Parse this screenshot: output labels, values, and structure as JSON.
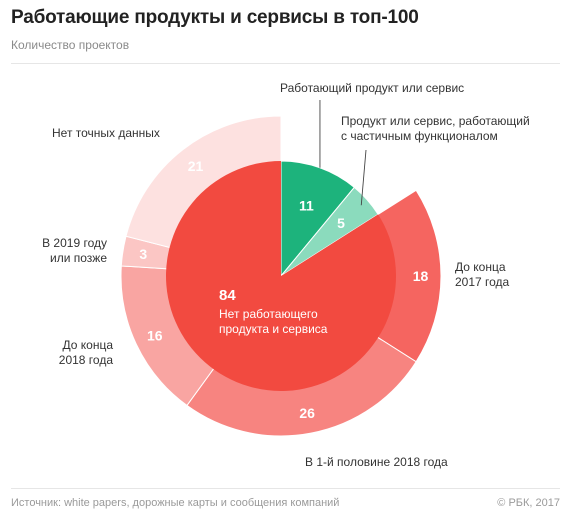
{
  "header": {
    "title": "Работающие продукты и сервисы в топ-100",
    "subtitle": "Количество проектов"
  },
  "chart_data": {
    "type": "pie",
    "title": "Работающие продукты и сервисы в топ-100",
    "subtitle": "Количество проектов",
    "inner_ring": [
      {
        "label": "Работающий продукт или сервис",
        "value": 11,
        "color": "#1db37c"
      },
      {
        "label": "Продукт или сервис, работающий с частичным функционалом",
        "value": 5,
        "color": "#8bdbbd"
      },
      {
        "label": "Нет работающего продукта и сервиса",
        "value": 84,
        "color": "#f24a40"
      }
    ],
    "outer_ring": {
      "parent": "Нет работающего продукта и сервиса",
      "segments": [
        {
          "label": "До конца 2017 года",
          "value": 18,
          "color": "#f56560"
        },
        {
          "label": "В 1-й половине 2018 года",
          "value": 26,
          "color": "#f78480"
        },
        {
          "label": "До конца 2018 года",
          "value": 16,
          "color": "#f9a5a2"
        },
        {
          "label": "В 2019 году или позже",
          "value": 3,
          "color": "#fbc6c4"
        },
        {
          "label": "Нет точных данных",
          "value": 21,
          "color": "#fde1e0"
        }
      ]
    },
    "center_label": {
      "value": "84",
      "text": "Нет работающего продукта и сервиса"
    }
  },
  "footer": {
    "source": "Источник: white papers, дорожные карты и сообщения компаний",
    "credit": "© РБК, 2017"
  }
}
